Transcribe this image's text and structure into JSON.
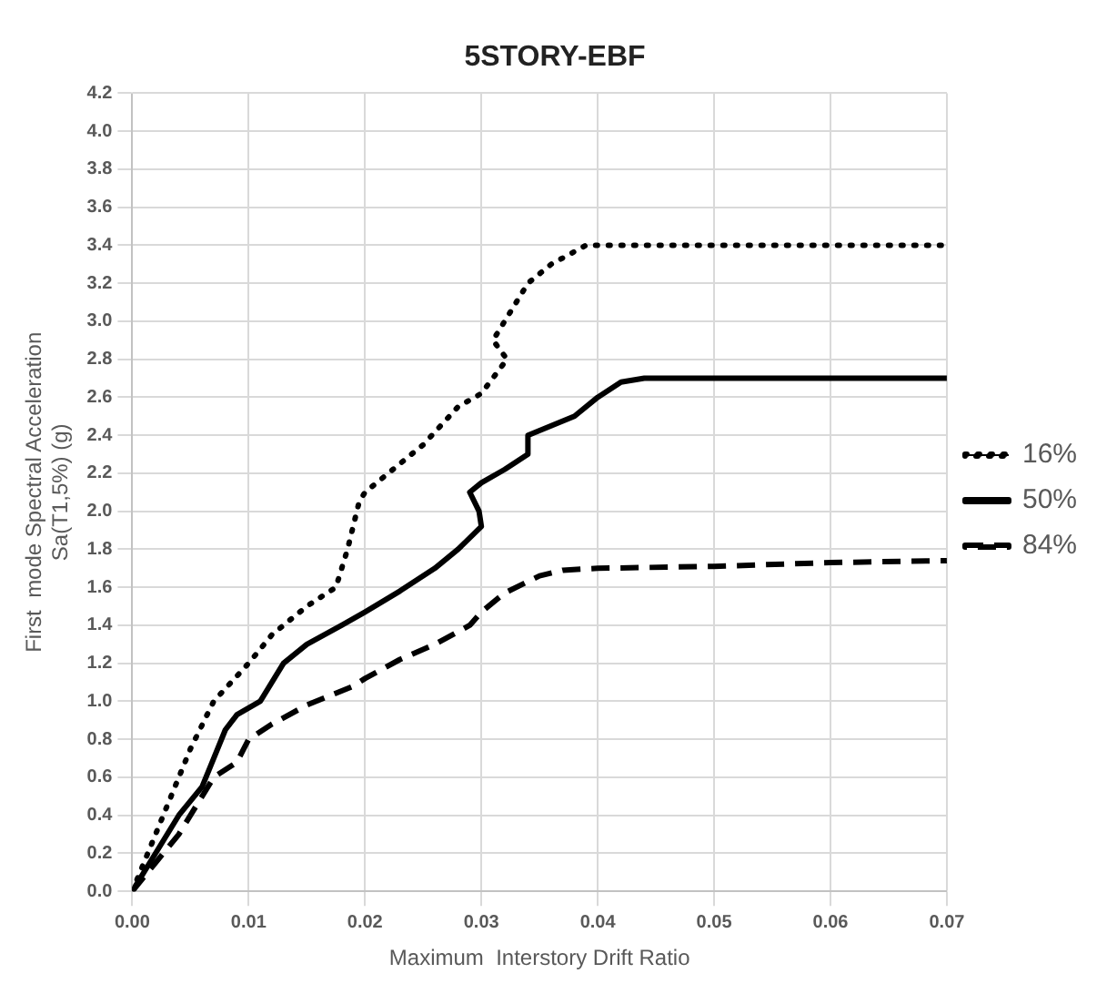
{
  "chart_data": {
    "type": "line",
    "title": "5STORY-EBF",
    "xlabel": "Maximum  Interstory Drift Ratio",
    "ylabel": "First  mode Spectral Acceleration\nSa(T1,5%) (g)",
    "xlim": [
      0,
      0.07
    ],
    "xticks": [
      {
        "value": 0,
        "label": "0.00"
      },
      {
        "value": 0.01,
        "label": "0.01"
      },
      {
        "value": 0.02,
        "label": "0.02"
      },
      {
        "value": 0.03,
        "label": "0.03"
      },
      {
        "value": 0.04,
        "label": "0.04"
      },
      {
        "value": 0.05,
        "label": "0.05"
      },
      {
        "value": 0.06,
        "label": "0.06"
      },
      {
        "value": 0.07,
        "label": "0.07"
      }
    ],
    "ylim": [
      0,
      4.2
    ],
    "yticks": [
      {
        "value": 0,
        "label": "0.0"
      },
      {
        "value": 0.2,
        "label": "0.2"
      },
      {
        "value": 0.4,
        "label": "0.4"
      },
      {
        "value": 0.6,
        "label": "0.6"
      },
      {
        "value": 0.8,
        "label": "0.8"
      },
      {
        "value": 1,
        "label": "1.0"
      },
      {
        "value": 1.2,
        "label": "1.2"
      },
      {
        "value": 1.4,
        "label": "1.4"
      },
      {
        "value": 1.6,
        "label": "1.6"
      },
      {
        "value": 1.8,
        "label": "1.8"
      },
      {
        "value": 2,
        "label": "2.0"
      },
      {
        "value": 2.2,
        "label": "2.2"
      },
      {
        "value": 2.4,
        "label": "2.4"
      },
      {
        "value": 2.6,
        "label": "2.6"
      },
      {
        "value": 2.8,
        "label": "2.8"
      },
      {
        "value": 3,
        "label": "3.0"
      },
      {
        "value": 3.2,
        "label": "3.2"
      },
      {
        "value": 3.4,
        "label": "3.4"
      },
      {
        "value": 3.6,
        "label": "3.6"
      },
      {
        "value": 3.8,
        "label": "3.8"
      },
      {
        "value": 4,
        "label": "4.0"
      },
      {
        "value": 4.2,
        "label": "4.2"
      }
    ],
    "grid": true,
    "legend": "right",
    "marker": "none",
    "series": [
      {
        "name": "16%",
        "color": "#000000",
        "line_style": "dotted",
        "x": [
          0,
          0.001,
          0.003,
          0.005,
          0.007,
          0.01,
          0.012,
          0.015,
          0.0175,
          0.0185,
          0.0195,
          0.02,
          0.022,
          0.025,
          0.028,
          0.03,
          0.0322,
          0.031,
          0.032,
          0.034,
          0.036,
          0.039,
          0.07
        ],
        "values": [
          0,
          0.15,
          0.45,
          0.75,
          1.0,
          1.2,
          1.35,
          1.5,
          1.6,
          1.8,
          2.05,
          2.1,
          2.2,
          2.35,
          2.55,
          2.62,
          2.8,
          2.9,
          3.0,
          3.2,
          3.3,
          3.4,
          3.4
        ]
      },
      {
        "name": "50%",
        "color": "#000000",
        "line_style": "solid",
        "x": [
          0,
          0.002,
          0.004,
          0.006,
          0.007,
          0.008,
          0.009,
          0.011,
          0.013,
          0.015,
          0.018,
          0.02,
          0.023,
          0.026,
          0.028,
          0.03,
          0.0298,
          0.029,
          0.03,
          0.032,
          0.034,
          0.034,
          0.036,
          0.038,
          0.04,
          0.042,
          0.044,
          0.07
        ],
        "values": [
          0,
          0.2,
          0.4,
          0.55,
          0.7,
          0.85,
          0.93,
          1.0,
          1.2,
          1.3,
          1.4,
          1.47,
          1.58,
          1.7,
          1.8,
          1.92,
          2.0,
          2.1,
          2.15,
          2.22,
          2.3,
          2.4,
          2.45,
          2.5,
          2.6,
          2.68,
          2.7,
          2.7
        ]
      },
      {
        "name": "84%",
        "color": "#000000",
        "line_style": "dashed",
        "x": [
          0,
          0.002,
          0.004,
          0.006,
          0.007,
          0.009,
          0.01,
          0.012,
          0.015,
          0.017,
          0.019,
          0.02,
          0.023,
          0.026,
          0.029,
          0.03,
          0.032,
          0.035,
          0.037,
          0.04,
          0.05,
          0.06,
          0.07
        ],
        "values": [
          0,
          0.15,
          0.3,
          0.5,
          0.6,
          0.68,
          0.8,
          0.88,
          0.98,
          1.03,
          1.08,
          1.12,
          1.22,
          1.3,
          1.4,
          1.47,
          1.57,
          1.66,
          1.69,
          1.7,
          1.71,
          1.73,
          1.74
        ]
      }
    ]
  }
}
